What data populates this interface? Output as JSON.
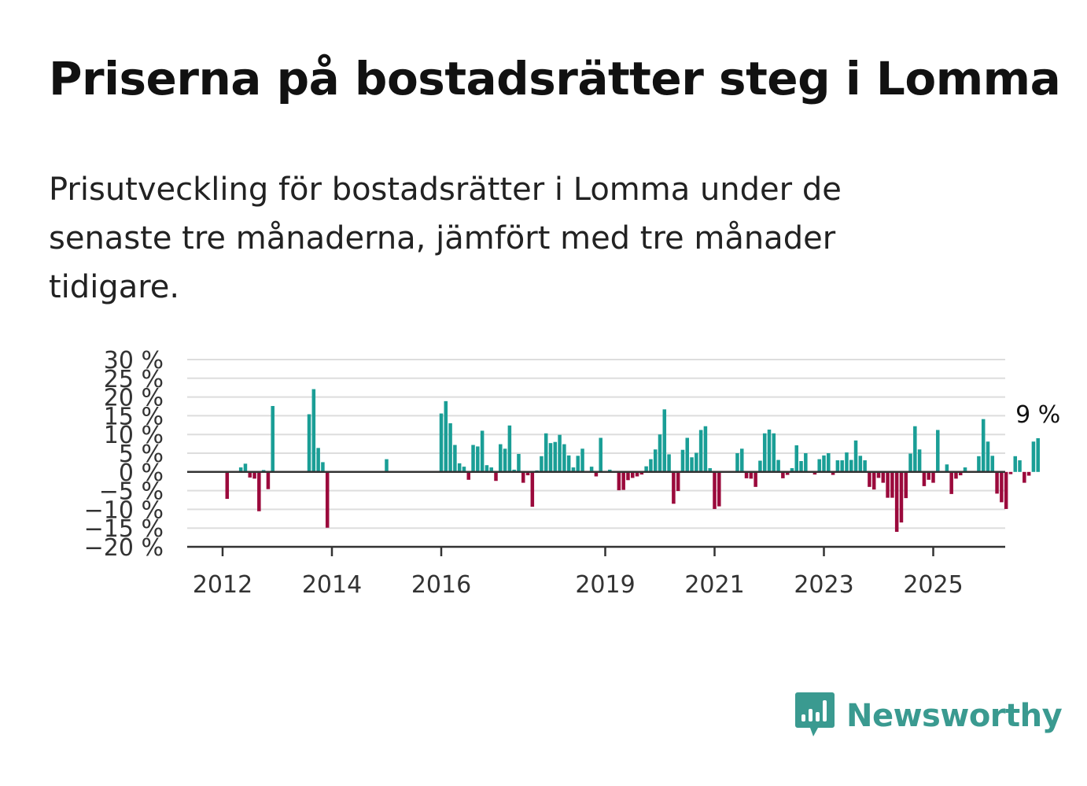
{
  "header": {
    "title": "Priserna på bostadsrätter steg i Lomma",
    "subtitle": "Prisutveckling för bostadsrätter i Lomma under de senaste tre månaderna, jämfört med tre månader tidigare."
  },
  "brand": {
    "name": "Newsworthy",
    "color": "#3a9a90",
    "icon": "newsworthy-bar-chart-icon"
  },
  "colors": {
    "positive": "#1a9e96",
    "negative": "#9b0a3c",
    "grid": "#dddddd",
    "axis": "#333333"
  },
  "chart_data": {
    "type": "bar",
    "title": "Priserna på bostadsrätter steg i Lomma",
    "xlabel": "",
    "ylabel": "",
    "ylim": [
      -20,
      30
    ],
    "y_ticks": [
      30,
      25,
      20,
      15,
      10,
      5,
      0,
      -5,
      -10,
      -15,
      -20
    ],
    "y_tick_labels": [
      "30 %",
      "25 %",
      "20 %",
      "15 %",
      "10 %",
      "5 %",
      "0 %",
      "−5 %",
      "−10 %",
      "−15 %",
      "−20 %"
    ],
    "x_tick_labels": [
      "2012",
      "2014",
      "2016",
      "2019",
      "2021",
      "2023",
      "2025"
    ],
    "x_tick_years": [
      2012,
      2014,
      2016,
      2019,
      2021,
      2023,
      2025
    ],
    "end_label": "9 %",
    "grid": true,
    "start": "2012-01",
    "series": [
      {
        "values": [
          0,
          -7.2,
          0,
          0,
          1.2,
          2.2,
          -1.5,
          -1.8,
          -10.5,
          0.5,
          -4.6,
          17.6,
          0,
          0,
          0,
          0,
          0,
          0,
          0,
          15.4,
          22.1,
          6.4,
          2.6,
          -14.9,
          0,
          0,
          0,
          0,
          0,
          0,
          0,
          0,
          0,
          0,
          0,
          0,
          3.4,
          0,
          0,
          0,
          0,
          0,
          0,
          0,
          0,
          0,
          0,
          0,
          15.6,
          18.9,
          13,
          7.2,
          2.3,
          1.4,
          -2.1,
          7.2,
          6.8,
          11,
          1.8,
          1.2,
          -2.4,
          7.4,
          6.2,
          12.4,
          0.6,
          4.8,
          -2.9,
          -0.9,
          -9.3,
          0.4,
          4.2,
          10.3,
          7.7,
          8,
          9.9,
          7.4,
          4.4,
          1.2,
          4.3,
          6.2,
          0,
          1.4,
          -1.2,
          9.1,
          0,
          0.6,
          0,
          -4.9,
          -4.8,
          -2.2,
          -1.6,
          -1.2,
          -0.7,
          1.5,
          3.4,
          6,
          10,
          16.7,
          4.7,
          -8.5,
          -5.1,
          5.9,
          9.1,
          3.9,
          5.1,
          11.2,
          12.2,
          1,
          -9.9,
          -9.2,
          0,
          0,
          0,
          5,
          6.2,
          -1.7,
          -1.8,
          -4,
          3,
          10.3,
          11.3,
          10.3,
          3.2,
          -1.7,
          -0.8,
          1,
          7.1,
          2.9,
          5,
          0,
          -0.7,
          3.4,
          4.4,
          5,
          -0.8,
          3.1,
          3.1,
          5.2,
          3.2,
          8.4,
          4.3,
          3.1,
          -4,
          -4.7,
          -1.6,
          -2.9,
          -6.9,
          -6.9,
          -16,
          -13.5,
          -7,
          4.9,
          12.2,
          6,
          -3.8,
          -2.1,
          -2.9,
          11.2,
          0.2,
          2,
          -5.9,
          -1.8,
          -0.9,
          1.2,
          0,
          0,
          4.2,
          14.1,
          8.1,
          4.3,
          -5.8,
          -8.1,
          -9.9,
          -0.6,
          4.2,
          3.1,
          -2.9,
          -1,
          8.1,
          9
        ]
      }
    ]
  }
}
